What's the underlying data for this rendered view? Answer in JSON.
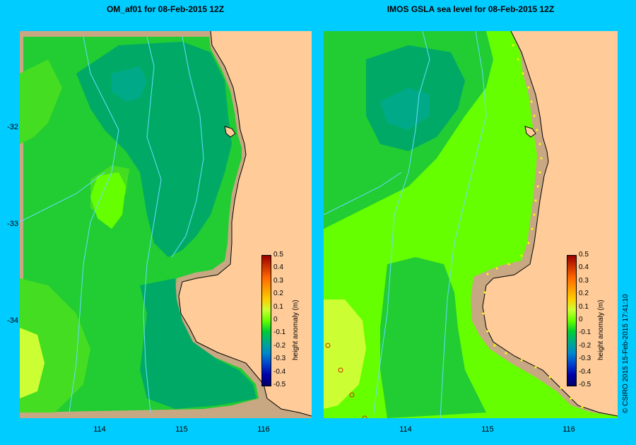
{
  "left_panel": {
    "title": "OM_af01  for 08-Feb-2015 12Z",
    "colorbar_title": "height anomaly (m)"
  },
  "right_panel": {
    "title": "IMOS GSLA sea level  for 08-Feb-2015 12Z",
    "colorbar_title": "height anomaly (m)"
  },
  "y_ticks": [
    "-32",
    "-33",
    "-34"
  ],
  "x_ticks": [
    "114",
    "115",
    "116"
  ],
  "colorbar_ticks": [
    "0.5",
    "0.4",
    "0.3",
    "0.2",
    "0.1",
    "0",
    "-0.1",
    "-0.2",
    "-0.3",
    "-0.4",
    "-0.5"
  ],
  "copyright": "© CSIRO 2015   15-Feb-2015 17:41:10",
  "colors": {
    "background": "#00ccff",
    "land": "#ffcc99",
    "shelf": "#c8a882",
    "contour_line": "#66ddff",
    "anomaly_+0.1": "#ccff33",
    "anomaly_0": "#66ff00",
    "anomaly_-0.1": "#22cc33",
    "anomaly_-0.2": "#00aa66",
    "anomaly_-0.3": "#00aa88"
  },
  "colorbar_colors": [
    "#990000",
    "#cc3300",
    "#ff6600",
    "#ff9900",
    "#ffcc00",
    "#ccff33",
    "#66ff00",
    "#00cc33",
    "#00aa88",
    "#0088cc",
    "#0044cc",
    "#0000aa",
    "#000066"
  ]
}
